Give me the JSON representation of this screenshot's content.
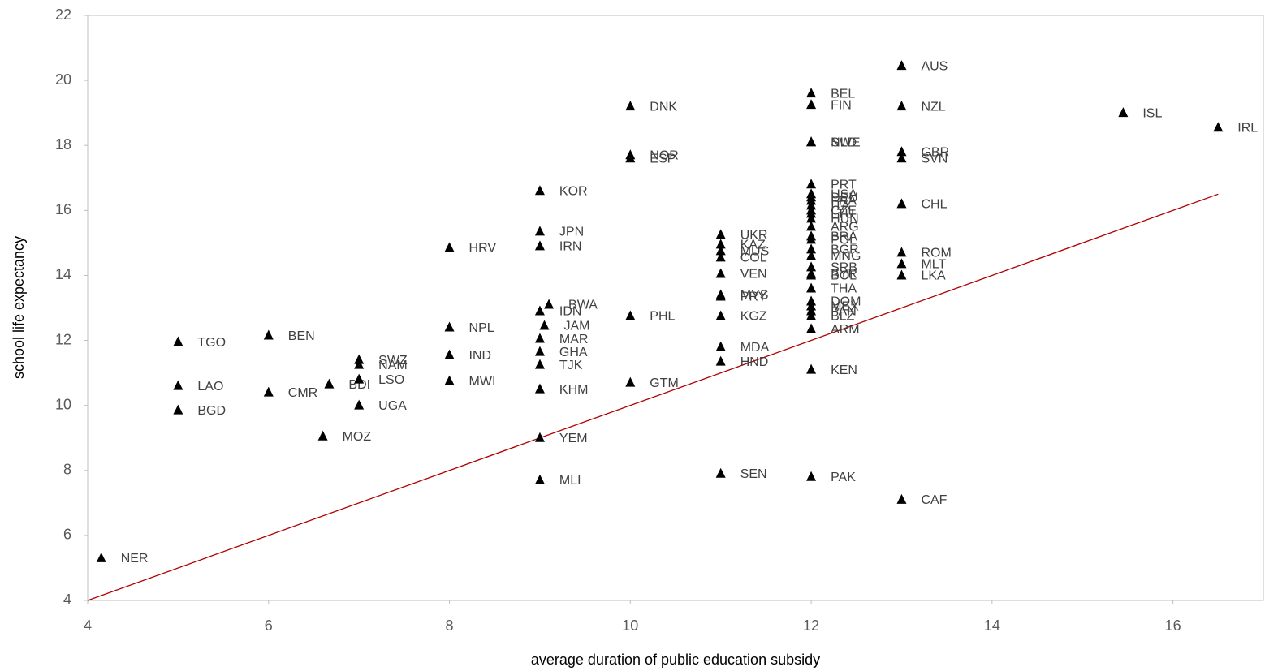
{
  "chart_data": {
    "type": "scatter",
    "x_label": "average duration of public education subsidy",
    "y_label": "school life expectancy",
    "xlim": [
      4,
      17
    ],
    "ylim": [
      4,
      22
    ],
    "xticks": [
      4,
      6,
      8,
      10,
      12,
      14,
      16
    ],
    "yticks": [
      4,
      6,
      8,
      10,
      12,
      14,
      16,
      18,
      20,
      22
    ],
    "grid": false,
    "marker_color": "#000000",
    "labels": [
      "NER",
      "TGO",
      "LAO",
      "BGD",
      "BEN",
      "CMR",
      "BDI",
      "MOZ",
      "SWZ",
      "NAM",
      "LSO",
      "UGA",
      "HRV",
      "NPL",
      "IND",
      "MWI",
      "KOR",
      "JPN",
      "IRN",
      "IDN",
      "BWA",
      "JAM",
      "MAR",
      "GHA",
      "TJK",
      "KHM",
      "YEM",
      "MLI",
      "DNK",
      "NOR",
      "ESP",
      "PHL",
      "GTM",
      "UKR",
      "KAZ",
      "MUS",
      "COL",
      "VEN",
      "MYS",
      "PRY",
      "KGZ",
      "MDA",
      "HND",
      "SEN",
      "BEL",
      "FIN",
      "SWE",
      "NLD",
      "PRT",
      "USA",
      "DEU",
      "FRA",
      "ITA",
      "CZE",
      "LTU",
      "HUN",
      "ARG",
      "BRA",
      "POL",
      "BGR",
      "MNG",
      "SRB",
      "SYR",
      "BOL",
      "THA",
      "DOM",
      "MEX",
      "PAN",
      "BLZ",
      "ARM",
      "KEN",
      "PAK",
      "AUS",
      "NZL",
      "GBR",
      "SVN",
      "CHL",
      "ROM",
      "MLT",
      "LKA",
      "CAF",
      "ISL",
      "IRL"
    ],
    "x": [
      4.15,
      5,
      5,
      5,
      6,
      6,
      6.67,
      6.6,
      7,
      7,
      7,
      7,
      8,
      8,
      8,
      8,
      9,
      9,
      9,
      9,
      9.1,
      9.05,
      9,
      9,
      9,
      9,
      9,
      9,
      10,
      10,
      10,
      10,
      10,
      11,
      11,
      11,
      11,
      11,
      11,
      11,
      11,
      11,
      11,
      11,
      12,
      12,
      12,
      12,
      12,
      12,
      12,
      12,
      12,
      12,
      12,
      12,
      12,
      12,
      12,
      12,
      12,
      12,
      12,
      12,
      12,
      12,
      12,
      12,
      12,
      12,
      12,
      12,
      13,
      13,
      13,
      13,
      13,
      13,
      13,
      13,
      13,
      15.45,
      16.5
    ],
    "y": [
      5.3,
      11.95,
      10.6,
      9.85,
      12.15,
      10.4,
      10.65,
      9.05,
      11.4,
      11.25,
      10.8,
      10.0,
      14.85,
      12.4,
      11.55,
      10.75,
      16.6,
      15.35,
      14.9,
      12.9,
      13.1,
      12.45,
      12.05,
      11.65,
      11.25,
      10.5,
      9.0,
      7.7,
      19.2,
      17.7,
      17.6,
      12.75,
      10.7,
      15.25,
      14.95,
      14.75,
      14.55,
      14.05,
      13.4,
      13.35,
      12.75,
      11.8,
      11.35,
      7.9,
      19.6,
      19.25,
      18.1,
      18.1,
      16.8,
      16.5,
      16.4,
      16.3,
      16.15,
      16.0,
      15.9,
      15.75,
      15.5,
      15.2,
      15.1,
      14.8,
      14.6,
      14.25,
      14.05,
      14.0,
      13.6,
      13.2,
      13.05,
      12.9,
      12.75,
      12.35,
      11.1,
      7.8,
      20.45,
      19.2,
      17.8,
      17.6,
      16.2,
      14.7,
      14.35,
      14.0,
      7.1,
      19.0,
      18.55
    ],
    "reference_line": {
      "x": [
        4,
        16.5
      ],
      "y": [
        4,
        16.5
      ],
      "color": "#b00000"
    }
  }
}
